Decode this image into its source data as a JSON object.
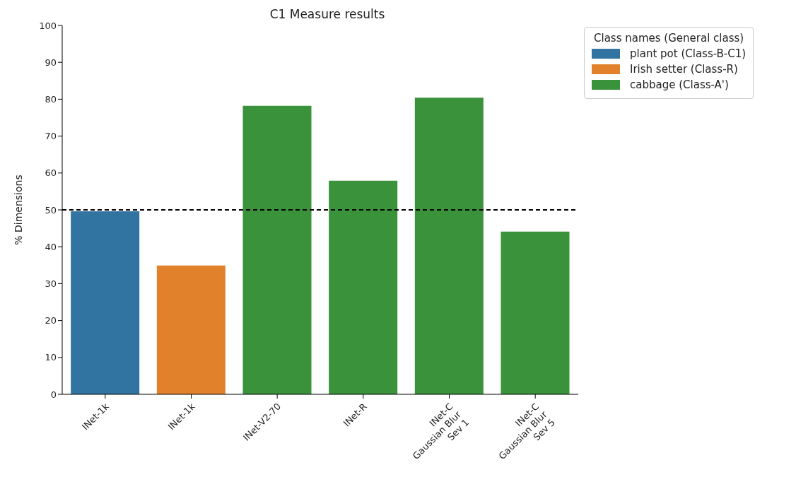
{
  "chart_data": {
    "type": "bar",
    "title": "C1 Measure results",
    "ylabel": "% Dimensions",
    "legend_title": "Class names (General class)",
    "categories": [
      "INet-1k",
      "INet-1k",
      "INet-V2-70",
      "INet-R",
      "INet-C\nGaussian Blur\nSev 1",
      "INet-C\nGaussian Blur\nSev 5"
    ],
    "series": [
      {
        "name": "plant pot (Class-B-C1)",
        "color": "#3274a1",
        "values": [
          49.6,
          null,
          null,
          null,
          null,
          null
        ]
      },
      {
        "name": "Irish setter (Class-R)",
        "color": "#e1812c",
        "values": [
          null,
          34.9,
          null,
          null,
          null,
          null
        ]
      },
      {
        "name": "cabbage (Class-A')",
        "color": "#3a923a",
        "values": [
          null,
          null,
          78.2,
          57.9,
          80.4,
          44.1
        ]
      }
    ],
    "stacked": true,
    "ylim": [
      0,
      100
    ],
    "yticks": [
      0,
      10,
      20,
      30,
      40,
      50,
      60,
      70,
      80,
      90,
      100
    ],
    "ref_lines": [
      {
        "axis": "y",
        "value": 50,
        "color": "#000000",
        "line_style": "dashed"
      }
    ],
    "legend": "top right",
    "grid": false
  }
}
